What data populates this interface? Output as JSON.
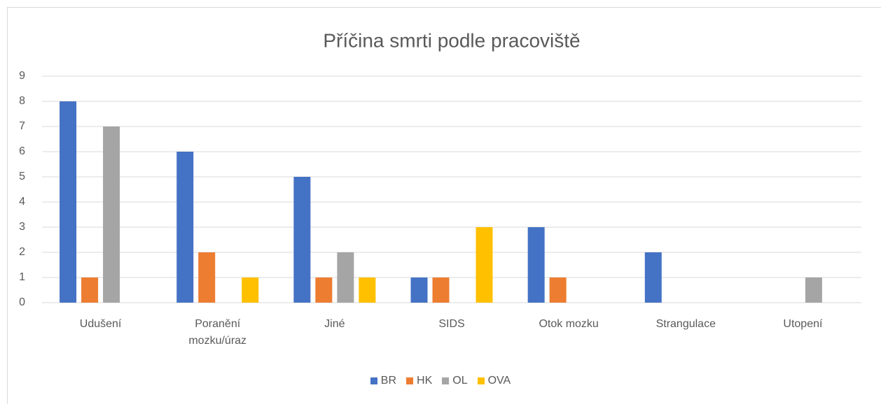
{
  "chart_data": {
    "type": "bar",
    "title": "Příčina smrti podle pracoviště",
    "categories": [
      "Udušení",
      "Poranění mozku/úraz",
      "Jiné",
      "SIDS",
      "Otok mozku",
      "Strangulace",
      "Utopení"
    ],
    "series": [
      {
        "name": "BR",
        "color": "#4472c4",
        "values": [
          8,
          6,
          5,
          1,
          3,
          2,
          0
        ]
      },
      {
        "name": "HK",
        "color": "#ed7d31",
        "values": [
          1,
          2,
          1,
          1,
          1,
          0,
          0
        ]
      },
      {
        "name": "OL",
        "color": "#a5a5a5",
        "values": [
          7,
          0,
          2,
          0,
          0,
          0,
          1
        ]
      },
      {
        "name": "OVA",
        "color": "#ffc000",
        "values": [
          0,
          1,
          1,
          3,
          0,
          0,
          0
        ]
      }
    ],
    "ylim": [
      0,
      9
    ],
    "yticks": [
      0,
      1,
      2,
      3,
      4,
      5,
      6,
      7,
      8,
      9
    ],
    "grid": true,
    "legend": "bottom"
  }
}
